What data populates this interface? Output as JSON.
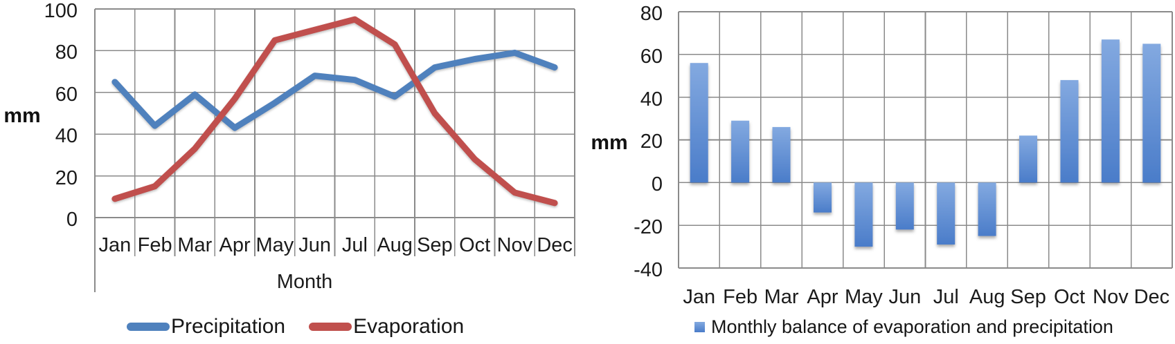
{
  "page": {
    "background": "#ffffff"
  },
  "colors": {
    "grid": "#8a8a8a",
    "text": "#1b1b1b",
    "precipitation_blue": "#4f81bd",
    "evaporation_red": "#c0504d",
    "bar_gradient_top": "#83a9e0",
    "bar_gradient_bottom": "#4a7cc9"
  },
  "chart_data": [
    {
      "type": "line",
      "title": "",
      "categories": [
        "Jan",
        "Feb",
        "Mar",
        "Apr",
        "May",
        "Jun",
        "Jul",
        "Aug",
        "Sep",
        "Oct",
        "Nov",
        "Dec"
      ],
      "series": [
        {
          "name": "Precipitation",
          "color": "#4f81bd",
          "values": [
            65,
            44,
            59,
            43,
            55,
            68,
            66,
            58,
            72,
            76,
            79,
            72
          ]
        },
        {
          "name": "Evaporation",
          "color": "#c0504d",
          "values": [
            9,
            15,
            33,
            57,
            85,
            90,
            95,
            83,
            50,
            28,
            12,
            7
          ]
        }
      ],
      "xlabel": "Month",
      "ylabel": "mm",
      "ylim": [
        0,
        100
      ],
      "ytick_step": 20,
      "yticks": [
        100,
        80,
        60,
        40,
        20,
        0
      ],
      "grid": true,
      "legend_position": "bottom"
    },
    {
      "type": "bar",
      "title": "",
      "categories": [
        "Jan",
        "Feb",
        "Mar",
        "Apr",
        "May",
        "Jun",
        "Jul",
        "Aug",
        "Sep",
        "Oct",
        "Nov",
        "Dec"
      ],
      "series": [
        {
          "name": "Monthly balance of evaporation and precipitation",
          "color_top": "#83a9e0",
          "color_bottom": "#4a7cc9",
          "values": [
            56,
            29,
            26,
            -14,
            -30,
            -22,
            -29,
            -25,
            22,
            48,
            67,
            65
          ]
        }
      ],
      "xlabel": "",
      "ylabel": "mm",
      "ylim": [
        -40,
        80
      ],
      "ytick_step": 20,
      "yticks": [
        80,
        60,
        40,
        20,
        0,
        -20,
        -40
      ],
      "grid": true,
      "legend_position": "bottom"
    }
  ]
}
